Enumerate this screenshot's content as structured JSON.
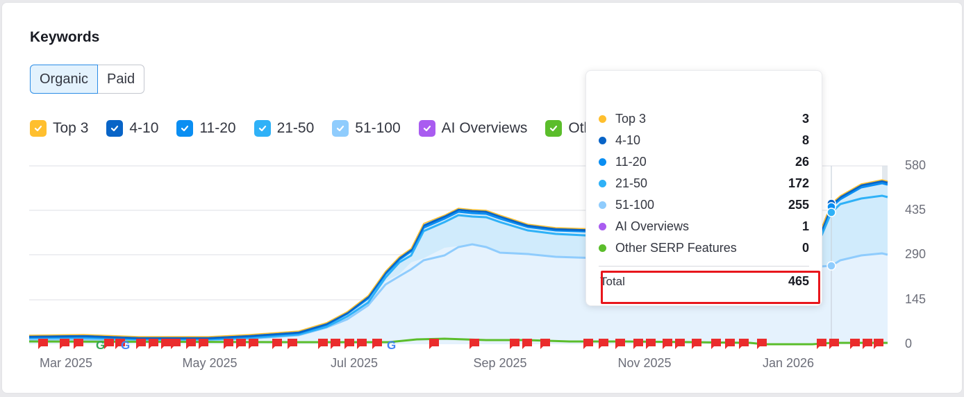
{
  "widget": {
    "title": "Keywords",
    "tabs": [
      {
        "label": "Organic",
        "active": true
      },
      {
        "label": "Paid",
        "active": false
      }
    ]
  },
  "legend": [
    {
      "label": "Top 3",
      "color": "#ffbf2e",
      "checked": true
    },
    {
      "label": "4-10",
      "color": "#0864c7",
      "checked": true
    },
    {
      "label": "11-20",
      "color": "#0a8ef2",
      "checked": true
    },
    {
      "label": "21-50",
      "color": "#2fb1f7",
      "checked": true
    },
    {
      "label": "51-100",
      "color": "#8fccfd",
      "checked": true
    },
    {
      "label": "AI Overviews",
      "color": "#a95cf0",
      "checked": true
    },
    {
      "label": "Other SERP Features",
      "color": "#5bbd2b",
      "checked": true
    }
  ],
  "tooltip": {
    "rows": [
      {
        "label": "Top 3",
        "value": "3",
        "color": "#ffbf2e"
      },
      {
        "label": "4-10",
        "value": "8",
        "color": "#0864c7"
      },
      {
        "label": "11-20",
        "value": "26",
        "color": "#0a8ef2"
      },
      {
        "label": "21-50",
        "value": "172",
        "color": "#2fb1f7"
      },
      {
        "label": "51-100",
        "value": "255",
        "color": "#8fccfd"
      },
      {
        "label": "AI Overviews",
        "value": "1",
        "color": "#a95cf0"
      },
      {
        "label": "Other SERP Features",
        "value": "0",
        "color": "#5bbd2b"
      }
    ],
    "total_label": "Total",
    "total_value": "465"
  },
  "chart_data": {
    "type": "area",
    "title": "Keywords",
    "stacked": true,
    "yaxis_position": "right",
    "ylim": [
      0,
      580
    ],
    "yticks": [
      0,
      145,
      290,
      435,
      580
    ],
    "xticks": [
      "Mar 2025",
      "May 2025",
      "Jul 2025",
      "Sep 2025",
      "Nov 2025",
      "Jan 2026"
    ],
    "grid": true,
    "x": [
      "2025-02-20",
      "2025-03-15",
      "2025-04-01",
      "2025-04-15",
      "2025-05-01",
      "2025-05-15",
      "2025-06-01",
      "2025-06-15",
      "2025-06-25",
      "2025-07-01",
      "2025-07-10",
      "2025-07-20",
      "2025-07-28",
      "2025-08-05",
      "2025-08-15",
      "2025-08-25",
      "2025-09-05",
      "2025-09-20",
      "2025-10-01",
      "2025-10-15",
      "2025-11-01",
      "2025-11-15",
      "2025-12-01",
      "2025-12-15",
      "2026-01-01",
      "2026-01-15",
      "2026-01-25",
      "2026-02-05",
      "2026-02-15"
    ],
    "series": [
      {
        "name": "51-100",
        "values": [
          14,
          12,
          8,
          7,
          6,
          8,
          15,
          20,
          40,
          60,
          90,
          125,
          175,
          220,
          240,
          250,
          215,
          205,
          200,
          196,
          194,
          192,
          190,
          188,
          186,
          185,
          255,
          270,
          295
        ]
      },
      {
        "name": "21-50",
        "values": [
          6,
          5,
          4,
          4,
          3,
          4,
          8,
          10,
          20,
          30,
          50,
          70,
          98,
          132,
          140,
          145,
          128,
          118,
          110,
          105,
          103,
          100,
          98,
          96,
          95,
          94,
          172,
          180,
          178
        ]
      },
      {
        "name": "11-20",
        "values": [
          2,
          2,
          2,
          2,
          2,
          2,
          3,
          4,
          6,
          8,
          10,
          12,
          14,
          18,
          22,
          24,
          20,
          20,
          20,
          20,
          20,
          21,
          21,
          22,
          22,
          22,
          26,
          30,
          35
        ]
      },
      {
        "name": "4-10",
        "values": [
          1,
          1,
          1,
          1,
          1,
          1,
          2,
          2,
          3,
          4,
          5,
          6,
          7,
          8,
          9,
          9,
          8,
          8,
          8,
          8,
          8,
          8,
          8,
          8,
          8,
          8,
          8,
          10,
          12
        ]
      },
      {
        "name": "Top 3",
        "values": [
          0,
          0,
          0,
          0,
          0,
          0,
          1,
          1,
          1,
          1,
          2,
          2,
          2,
          2,
          3,
          3,
          3,
          3,
          3,
          3,
          3,
          3,
          3,
          3,
          3,
          3,
          3,
          3,
          3
        ]
      },
      {
        "name": "AI Overviews",
        "values": [
          1,
          1,
          1,
          1,
          1,
          1,
          1,
          1,
          1,
          1,
          1,
          1,
          1,
          1,
          1,
          1,
          1,
          1,
          1,
          1,
          1,
          1,
          1,
          1,
          1,
          1,
          1,
          1,
          1
        ]
      },
      {
        "name": "Other SERP Features",
        "values": [
          10,
          10,
          10,
          10,
          10,
          10,
          10,
          10,
          10,
          10,
          10,
          18,
          18,
          16,
          16,
          14,
          14,
          14,
          12,
          12,
          10,
          10,
          8,
          6,
          6,
          6,
          0,
          10,
          10
        ]
      }
    ],
    "hover": {
      "x": "2026-01-25",
      "total": 465
    }
  }
}
